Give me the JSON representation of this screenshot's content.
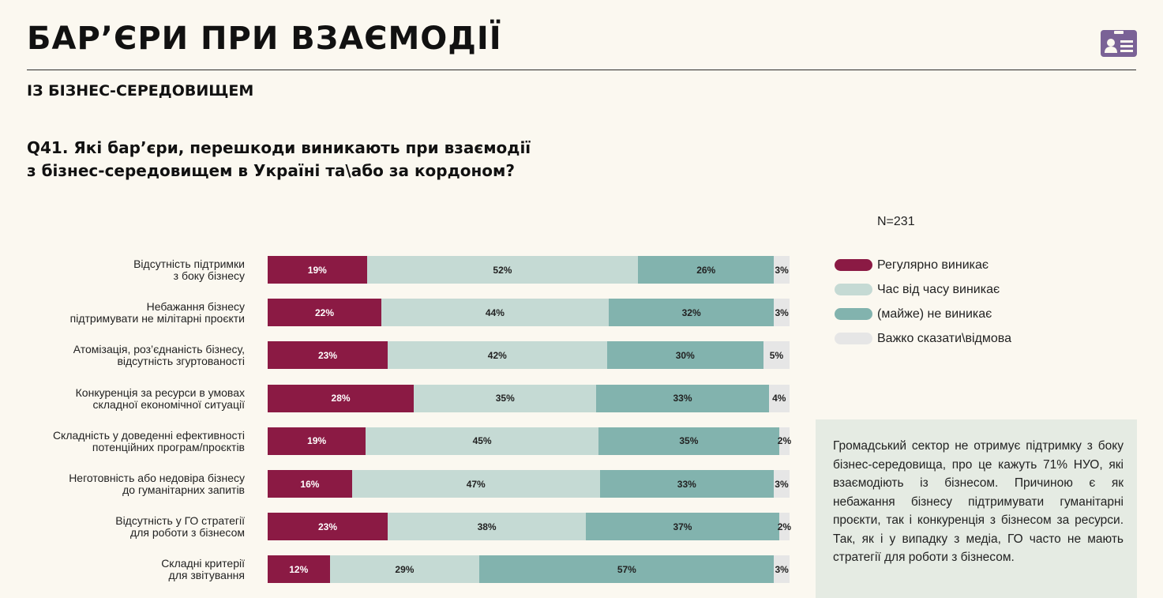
{
  "header": {
    "title": "БАР’ЄРИ ПРИ ВЗАЄМОДІЇ",
    "subtitle": "ІЗ БІЗНЕС-СЕРЕДОВИЩЕМ",
    "icon": "id-card-icon",
    "icon_color": "#7a6296"
  },
  "question": {
    "line1": "Q41. Які бар’єри, перешкоди виникають при взаємодії",
    "line2": "з бізнес-середовищем в Україні та\\або за кордоном?"
  },
  "note": {
    "text": "Громадський сектор не отримує підтримку з боку бізнес-середовища, про це кажуть 71% НУО, які взаємодіють із бізнесом. Причиною є як небажання бізнесу підтримувати гуманітарні проєкти, так і конкуренція з бізнесом за ресурси. Так, як і у випадку з медіа, ГО часто не мають стратегії для роботи з бізнесом."
  },
  "chart_data": {
    "type": "bar",
    "orientation": "horizontal",
    "stacked": true,
    "n_label": "N=231",
    "title": "",
    "xlabel": "",
    "ylabel": "",
    "xlim": [
      0,
      100
    ],
    "grid": false,
    "legend_position": "right",
    "categories": [
      [
        "Відсутність підтримки",
        "з боку бізнесу"
      ],
      [
        "Небажання бізнесу",
        "підтримувати не мілітарні проєкти"
      ],
      [
        "Атомізація, роз’єднаність бізнесу,",
        "відсутність згуртованості"
      ],
      [
        "Конкуренція за ресурси в умовах",
        "складної економічної ситуації"
      ],
      [
        "Складність у доведенні ефективності",
        "потенційних програм/проєктів"
      ],
      [
        "Неготовність або недовіра бізнесу",
        "до гуманітарних запитів"
      ],
      [
        "Відсутність у ГО стратегії",
        "для роботи з бізнесом"
      ],
      [
        "Складні критерії",
        "для звітування"
      ]
    ],
    "series": [
      {
        "name": "Регулярно виникає",
        "color": "#8b1a44",
        "values": [
          19,
          22,
          23,
          28,
          19,
          16,
          23,
          12
        ],
        "labels": [
          "19%",
          "22%",
          "23%",
          "28%",
          "19%",
          "16%",
          "23%",
          "12%"
        ]
      },
      {
        "name": "Час від часу виникає",
        "color": "#c5dad4",
        "values": [
          52,
          44,
          42,
          35,
          45,
          47,
          38,
          29
        ],
        "labels": [
          "52%",
          "44%",
          "42%",
          "35%",
          "45%",
          "47%",
          "38%",
          "29%"
        ]
      },
      {
        "name": "(майже) не виникає",
        "color": "#82b3ae",
        "values": [
          26,
          32,
          30,
          33,
          35,
          33,
          37,
          57
        ],
        "labels": [
          "26%",
          "32%",
          "30%",
          "33%",
          "35%",
          "33%",
          "37%",
          "57%"
        ]
      },
      {
        "name": "Важко сказати\\відмова",
        "color": "#e6e6e6",
        "values": [
          3,
          3,
          5,
          4,
          2,
          3,
          2,
          3
        ],
        "labels": [
          "3%",
          "3%",
          "5%",
          "4%",
          "2%",
          "3%",
          "2%",
          "3%"
        ]
      }
    ]
  }
}
